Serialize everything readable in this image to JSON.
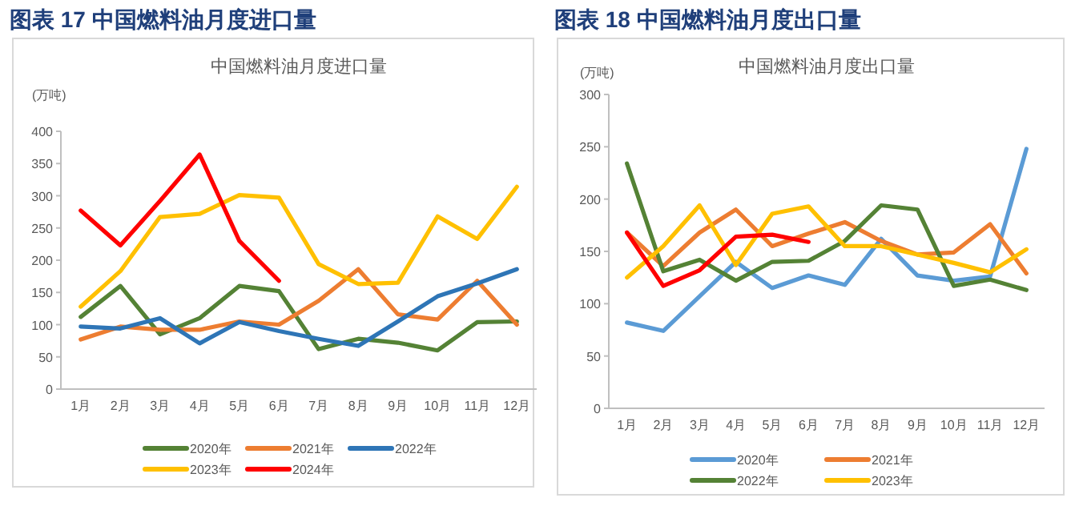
{
  "chart_data": [
    {
      "type": "line",
      "title": "图表 17  中国燃料油月度进口量",
      "subtitle": "中国燃料油月度进口量",
      "ylabel": "(万吨)",
      "categories": [
        "1月",
        "2月",
        "3月",
        "4月",
        "5月",
        "6月",
        "7月",
        "8月",
        "9月",
        "10月",
        "11月",
        "12月"
      ],
      "ylim": [
        0,
        400
      ],
      "yticks": [
        0,
        50,
        100,
        150,
        200,
        250,
        300,
        350,
        400
      ],
      "legend": "bottom",
      "grid": false,
      "series": [
        {
          "name": "2020年",
          "color": "#548235",
          "values": [
            112,
            160,
            85,
            110,
            160,
            152,
            62,
            78,
            72,
            60,
            104,
            105
          ]
        },
        {
          "name": "2021年",
          "color": "#ed7d31",
          "values": [
            77,
            97,
            92,
            92,
            105,
            100,
            137,
            186,
            116,
            108,
            168,
            100
          ]
        },
        {
          "name": "2022年",
          "color": "#2e75b6",
          "values": [
            97,
            94,
            110,
            71,
            104,
            90,
            78,
            67,
            105,
            144,
            164,
            186
          ]
        },
        {
          "name": "2023年",
          "color": "#ffc000",
          "values": [
            128,
            183,
            267,
            272,
            301,
            297,
            194,
            163,
            165,
            268,
            233,
            314
          ]
        },
        {
          "name": "2024年",
          "color": "#ff0000",
          "values": [
            277,
            223,
            292,
            364,
            230,
            168,
            null,
            null,
            null,
            null,
            null,
            null
          ]
        }
      ]
    },
    {
      "type": "line",
      "title": "图表 18  中国燃料油月度出口量",
      "subtitle": "中国燃料油月度出口量",
      "ylabel": "(万吨)",
      "categories": [
        "1月",
        "2月",
        "3月",
        "4月",
        "5月",
        "6月",
        "7月",
        "8月",
        "9月",
        "10月",
        "11月",
        "12月"
      ],
      "ylim": [
        0,
        300
      ],
      "yticks": [
        0,
        50,
        100,
        150,
        200,
        250,
        300
      ],
      "legend": "bottom",
      "grid": false,
      "series": [
        {
          "name": "2020年",
          "color": "#5b9bd5",
          "values": [
            82,
            74,
            107,
            140,
            115,
            127,
            118,
            162,
            127,
            122,
            126,
            248
          ]
        },
        {
          "name": "2021年",
          "color": "#ed7d31",
          "values": [
            168,
            136,
            168,
            190,
            155,
            167,
            178,
            160,
            147,
            149,
            176,
            129
          ]
        },
        {
          "name": "2022年",
          "color": "#548235",
          "values": [
            234,
            131,
            142,
            122,
            140,
            141,
            160,
            194,
            190,
            117,
            123,
            113
          ]
        },
        {
          "name": "2023年",
          "color": "#ffc000",
          "values": [
            125,
            155,
            194,
            137,
            186,
            193,
            155,
            155,
            147,
            139,
            130,
            152
          ]
        },
        {
          "color": "#ff0000",
          "values": [
            168,
            117,
            132,
            164,
            166,
            159,
            null,
            null,
            null,
            null,
            null,
            null
          ]
        }
      ]
    }
  ]
}
